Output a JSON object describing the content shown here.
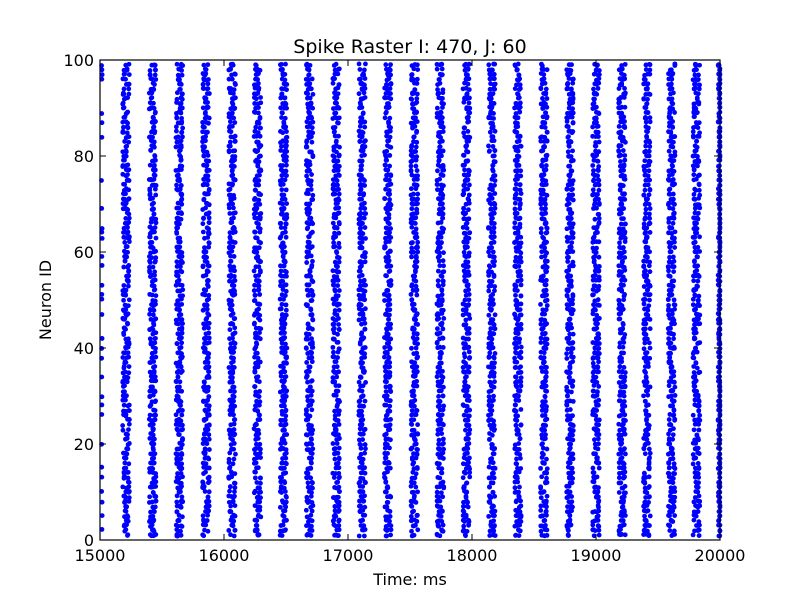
{
  "chart_data": {
    "type": "scatter",
    "title": "Spike Raster I: 470, J: 60",
    "xlabel": "Time: ms",
    "ylabel": "Neuron ID",
    "xlim": [
      15000,
      20000
    ],
    "ylim": [
      0,
      100
    ],
    "xticks": [
      15000,
      16000,
      17000,
      18000,
      19000,
      20000
    ],
    "yticks": [
      0,
      20,
      40,
      60,
      80,
      100
    ],
    "grid": false,
    "marker_color": "#0000ff",
    "series": [
      {
        "neuron_id_range": [
          1,
          99
        ],
        "burst_times_ms": [
          15015,
          15210,
          15425,
          15640,
          15855,
          16065,
          16270,
          16480,
          16690,
          16905,
          17115,
          17320,
          17535,
          17745,
          17955,
          18160,
          18370,
          18580,
          18790,
          19000,
          19210,
          19410,
          19610,
          19810,
          20000
        ],
        "burst_width_ms": [
          6,
          55,
          55,
          55,
          55,
          55,
          55,
          55,
          55,
          55,
          55,
          55,
          55,
          55,
          55,
          55,
          55,
          55,
          55,
          55,
          55,
          55,
          55,
          55,
          30
        ]
      }
    ]
  }
}
